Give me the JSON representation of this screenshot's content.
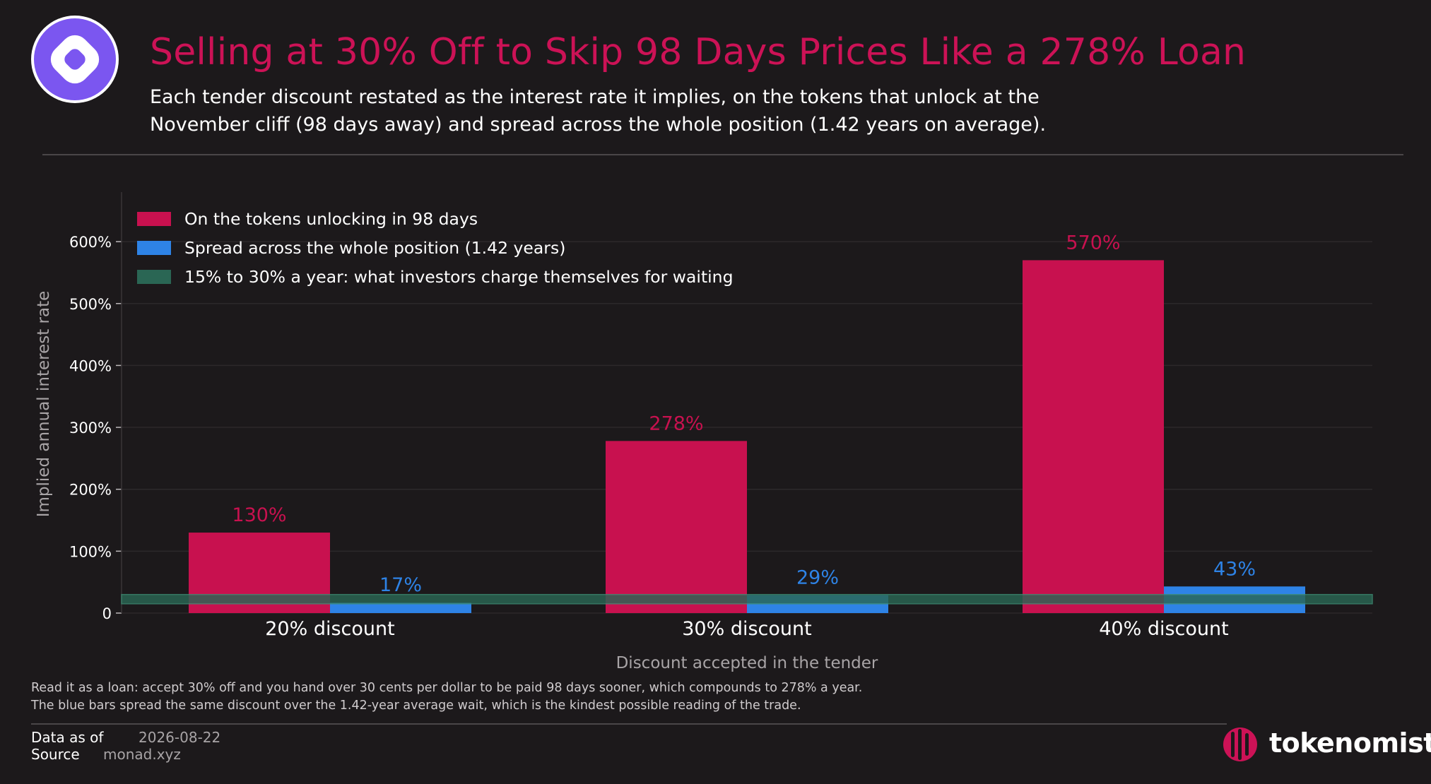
{
  "header": {
    "title": "Selling at 30% Off to Skip 98 Days Prices Like a 278% Loan",
    "subtitle": "Each tender discount restated as the interest rate it implies, on the tokens that unlock at the November cliff (98 days away) and spread across the whole position (1.42 years on average)."
  },
  "colors": {
    "background": "#1c191b",
    "accent": "#cc1256",
    "series_short": "#c8114f",
    "series_long": "#2e83e6",
    "band": "#2a6654"
  },
  "chart_data": {
    "type": "bar",
    "categories": [
      "20% discount",
      "30% discount",
      "40% discount"
    ],
    "series": [
      {
        "name": "On the tokens unlocking in 98 days",
        "values": [
          130,
          278,
          570
        ],
        "labels": [
          "130%",
          "278%",
          "570%"
        ],
        "color": "#c8114f"
      },
      {
        "name": "Spread across the whole position (1.42 years)",
        "values": [
          17,
          29,
          43
        ],
        "labels": [
          "17%",
          "29%",
          "43%"
        ],
        "color": "#2e83e6"
      }
    ],
    "band": {
      "name": "15% to 30% a year: what investors charge themselves for waiting",
      "from": 15,
      "to": 30,
      "color": "#2a6654"
    },
    "xlabel": "Discount accepted in the tender",
    "ylabel": "Implied annual interest rate",
    "ylim": [
      0,
      680
    ],
    "yticks": [
      0,
      100,
      200,
      300,
      400,
      500,
      600
    ],
    "ytick_labels": [
      "0",
      "100%",
      "200%",
      "300%",
      "400%",
      "500%",
      "600%"
    ],
    "legend_position": "top-left",
    "grid": true
  },
  "notes": {
    "line1": "Read it as a loan: accept 30% off and you hand over 30 cents per dollar to be paid 98 days sooner, which compounds to 278% a year.",
    "line2": "The blue bars spread the same discount over the 1.42-year average wait, which is the kindest possible reading of the trade."
  },
  "footer": {
    "data_as_of_label": "Data as of",
    "data_as_of_value": "2026-08-22",
    "source_label": "Source",
    "source_value": "monad.xyz",
    "brand": "tokenomist"
  }
}
